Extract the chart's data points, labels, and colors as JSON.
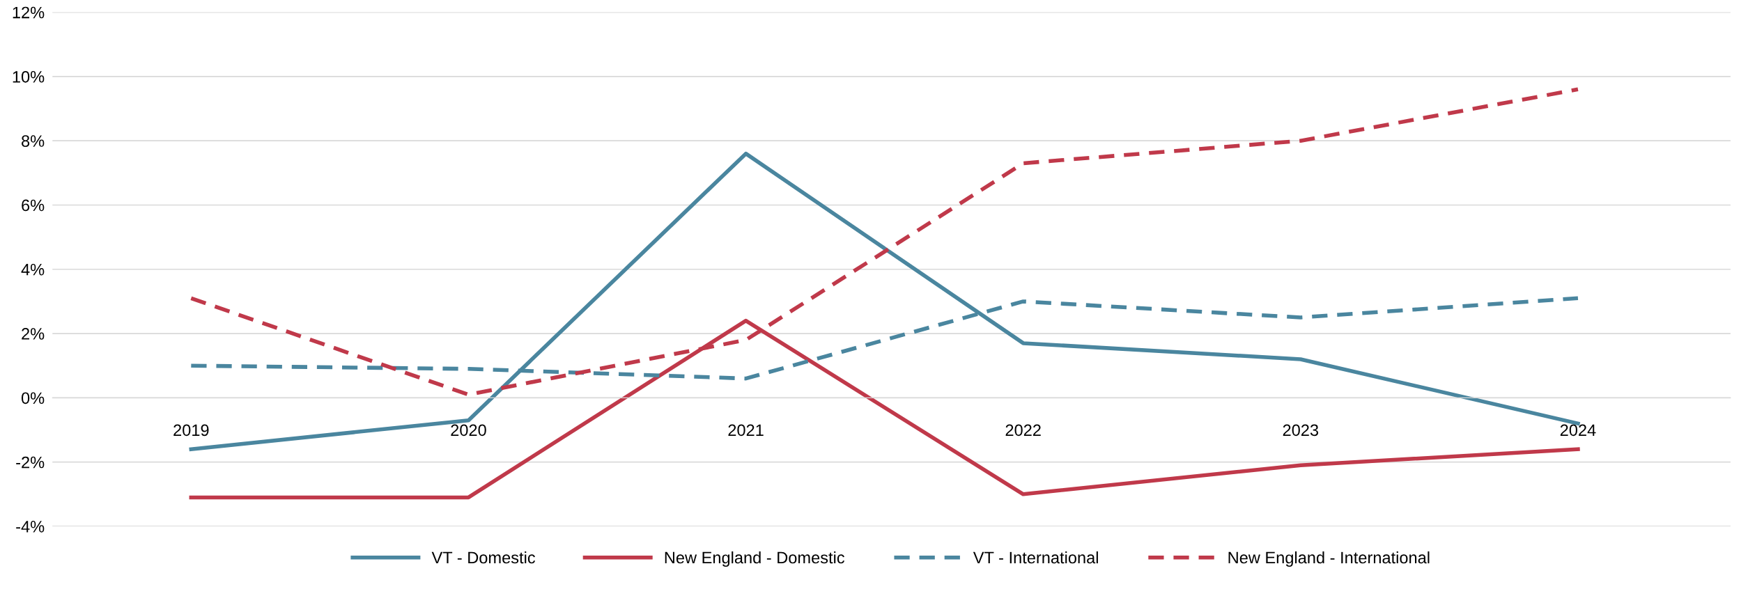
{
  "chart_data": {
    "type": "line",
    "categories": [
      "2019",
      "2020",
      "2021",
      "2022",
      "2023",
      "2024"
    ],
    "series": [
      {
        "name": "VT - Domestic",
        "color": "#4a869f",
        "line_style": "solid",
        "values": [
          -1.6,
          -0.7,
          7.6,
          1.7,
          1.2,
          -0.8
        ]
      },
      {
        "name": "New England - Domestic",
        "color": "#c0394a",
        "line_style": "solid",
        "values": [
          -3.1,
          -3.1,
          2.4,
          -3.0,
          -2.1,
          -1.6
        ]
      },
      {
        "name": "VT - International",
        "color": "#4a869f",
        "line_style": "dashed",
        "values": [
          1.0,
          0.9,
          0.6,
          3.0,
          2.5,
          3.1
        ]
      },
      {
        "name": "New England - International",
        "color": "#c0394a",
        "line_style": "dashed",
        "values": [
          3.1,
          0.1,
          1.8,
          7.3,
          8.0,
          9.6
        ]
      }
    ],
    "ylim": [
      -4,
      12
    ],
    "yticks": [
      {
        "value": -4,
        "label": "-4%"
      },
      {
        "value": -2,
        "label": "-2%"
      },
      {
        "value": 0,
        "label": "0%"
      },
      {
        "value": 2,
        "label": "2%"
      },
      {
        "value": 4,
        "label": "4%"
      },
      {
        "value": 6,
        "label": "6%"
      },
      {
        "value": 8,
        "label": "8%"
      },
      {
        "value": 10,
        "label": "10%"
      },
      {
        "value": 12,
        "label": "12%"
      }
    ],
    "grid": "y",
    "legend": "bottom",
    "marker": "none"
  }
}
